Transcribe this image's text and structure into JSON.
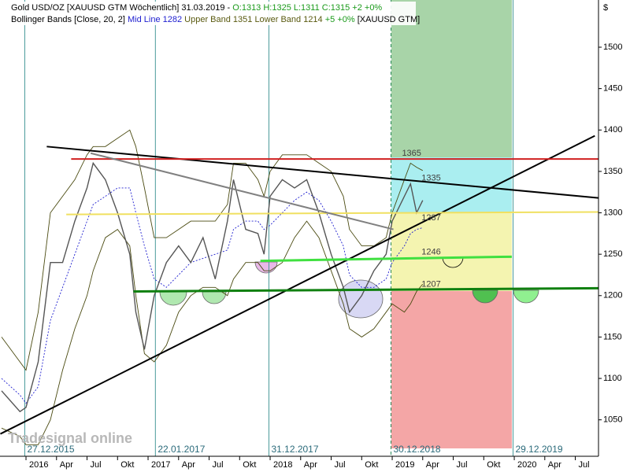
{
  "chart_data": {
    "type": "line",
    "header": [
      [
        {
          "text": "Gold USD/OZ [XAUUSD GTM  Wöchentlich] 31.03.2019 - ",
          "color": "#000000"
        },
        {
          "text": "O:1313 H:1325 L:1311 C:1315 +2 +0%",
          "color": "#1a9a1a"
        }
      ],
      [
        {
          "text": "Bollinger Bands [Close, 20, 2] ",
          "color": "#000000"
        },
        {
          "text": "Mid Line 1282",
          "color": "#2020d0"
        },
        {
          "text": " Upper Band 1351 Lower Band 1214",
          "color": "#5a5a10"
        },
        {
          "text": " +5 +0%",
          "color": "#1a9a1a"
        },
        {
          "text": " [XAUUSD GTM]",
          "color": "#000000"
        }
      ]
    ],
    "axis_symbol": "$",
    "watermark": "Tradesignal online",
    "x": [
      2015.8,
      2015.95,
      2016.0,
      2016.1,
      2016.2,
      2016.3,
      2016.4,
      2016.5,
      2016.55,
      2016.65,
      2016.75,
      2016.85,
      2016.9,
      2016.97,
      2017.05,
      2017.15,
      2017.25,
      2017.35,
      2017.45,
      2017.55,
      2017.65,
      2017.7,
      2017.8,
      2017.9,
      2017.95,
      2018.0,
      2018.1,
      2018.2,
      2018.3,
      2018.4,
      2018.5,
      2018.6,
      2018.65,
      2018.75,
      2018.85,
      2018.95,
      2019.0,
      2019.1,
      2019.15,
      2019.2,
      2019.25
    ],
    "series": [
      {
        "name": "Close",
        "color": "#555555",
        "width": 1.4,
        "dash": "",
        "values": [
          1085,
          1060,
          1065,
          1120,
          1240,
          1240,
          1290,
          1330,
          1360,
          1340,
          1300,
          1250,
          1180,
          1135,
          1200,
          1240,
          1260,
          1240,
          1270,
          1220,
          1290,
          1340,
          1280,
          1275,
          1250,
          1320,
          1340,
          1330,
          1340,
          1300,
          1250,
          1210,
          1180,
          1200,
          1230,
          1250,
          1290,
          1320,
          1335,
          1300,
          1315
        ]
      },
      {
        "name": "Upper Band",
        "color": "#4a4a10",
        "width": 0.9,
        "dash": "",
        "values": [
          1150,
          1120,
          1110,
          1180,
          1300,
          1320,
          1340,
          1370,
          1380,
          1380,
          1390,
          1400,
          1380,
          1330,
          1270,
          1270,
          1280,
          1290,
          1290,
          1290,
          1310,
          1360,
          1360,
          1340,
          1320,
          1350,
          1370,
          1370,
          1370,
          1360,
          1350,
          1320,
          1280,
          1260,
          1260,
          1270,
          1300,
          1340,
          1360,
          1355,
          1351
        ]
      },
      {
        "name": "Lower Band",
        "color": "#4a4a10",
        "width": 0.9,
        "dash": "",
        "values": [
          1040,
          1030,
          1020,
          1020,
          1050,
          1110,
          1160,
          1200,
          1230,
          1270,
          1280,
          1260,
          1200,
          1130,
          1120,
          1140,
          1180,
          1200,
          1210,
          1210,
          1200,
          1220,
          1240,
          1240,
          1230,
          1230,
          1240,
          1270,
          1290,
          1270,
          1230,
          1190,
          1160,
          1150,
          1160,
          1180,
          1190,
          1180,
          1190,
          1205,
          1214
        ]
      },
      {
        "name": "Mid Line",
        "color": "#2020d0",
        "width": 0.9,
        "dash": "2 2",
        "values": [
          1100,
          1080,
          1070,
          1090,
          1170,
          1210,
          1250,
          1290,
          1310,
          1320,
          1330,
          1330,
          1300,
          1260,
          1220,
          1210,
          1225,
          1240,
          1245,
          1250,
          1255,
          1280,
          1290,
          1290,
          1280,
          1285,
          1300,
          1315,
          1325,
          1315,
          1290,
          1260,
          1225,
          1210,
          1210,
          1220,
          1240,
          1260,
          1275,
          1280,
          1282
        ]
      }
    ],
    "lines": [
      {
        "from": [
          2016.17,
          1380
        ],
        "to": [
          2020.69,
          1318
        ],
        "color": "#000000",
        "width": 2
      },
      {
        "from": [
          2015.79,
          1033
        ],
        "to": [
          2020.66,
          1393
        ],
        "color": "#000000",
        "width": 2
      },
      {
        "from": [
          2016.37,
          1365
        ],
        "to": [
          2020.69,
          1365
        ],
        "color": "#d02020",
        "width": 2
      },
      {
        "from": [
          2016.33,
          1298
        ],
        "to": [
          2020.69,
          1301
        ],
        "color": "#f0e060",
        "width": 2
      },
      {
        "from": [
          2017.92,
          1242
        ],
        "to": [
          2019.98,
          1247
        ],
        "color": "#40e040",
        "width": 3
      },
      {
        "from": [
          2016.88,
          1205
        ],
        "to": [
          2020.69,
          1209
        ],
        "color": "#108010",
        "width": 3
      },
      {
        "from": [
          2016.53,
          1372
        ],
        "to": [
          2019.01,
          1280
        ],
        "color": "#808080",
        "width": 2
      }
    ],
    "levels": [
      {
        "value": 1365,
        "at": 2019.08
      },
      {
        "value": 1335,
        "at": 2019.24
      },
      {
        "value": 1287,
        "at": 2019.24
      },
      {
        "value": 1246,
        "at": 2019.24
      },
      {
        "value": 1207,
        "at": 2019.24
      }
    ],
    "vlines": [
      {
        "at": 2015.99,
        "label": "27.12.2015",
        "dash": ""
      },
      {
        "at": 2017.06,
        "label": "22.01.2017",
        "dash": ""
      },
      {
        "at": 2017.99,
        "label": "31.12.2017",
        "dash": ""
      },
      {
        "at": 2018.99,
        "label": "30.12.2018",
        "dash": "4 3"
      },
      {
        "at": 2019.99,
        "label": "29.12.2019",
        "dash": ""
      }
    ],
    "xlim": [
      2015.787,
      2020.69
    ],
    "ylim": [
      1006,
      1557
    ],
    "xticks": [
      2016,
      {
        "value": 2016.25,
        "label": "Apr"
      },
      {
        "value": 2016.5,
        "label": "Jul"
      },
      {
        "value": 2016.75,
        "label": "Okt"
      },
      2017,
      {
        "value": 2017.25,
        "label": "Apr"
      },
      {
        "value": 2017.5,
        "label": "Jul"
      },
      {
        "value": 2017.75,
        "label": "Okt"
      },
      2018,
      {
        "value": 2018.25,
        "label": "Apr"
      },
      {
        "value": 2018.5,
        "label": "Jul"
      },
      {
        "value": 2018.75,
        "label": "Okt"
      },
      2019,
      {
        "value": 2019.25,
        "label": "Apr"
      },
      {
        "value": 2019.5,
        "label": "Jul"
      },
      {
        "value": 2019.75,
        "label": "Okt"
      },
      2020,
      {
        "value": 2020.25,
        "label": "Apr"
      },
      {
        "value": 2020.5,
        "label": "Jul"
      }
    ],
    "yticks": [
      1050,
      1100,
      1150,
      1200,
      1250,
      1300,
      1350,
      1400,
      1450,
      1500
    ]
  }
}
